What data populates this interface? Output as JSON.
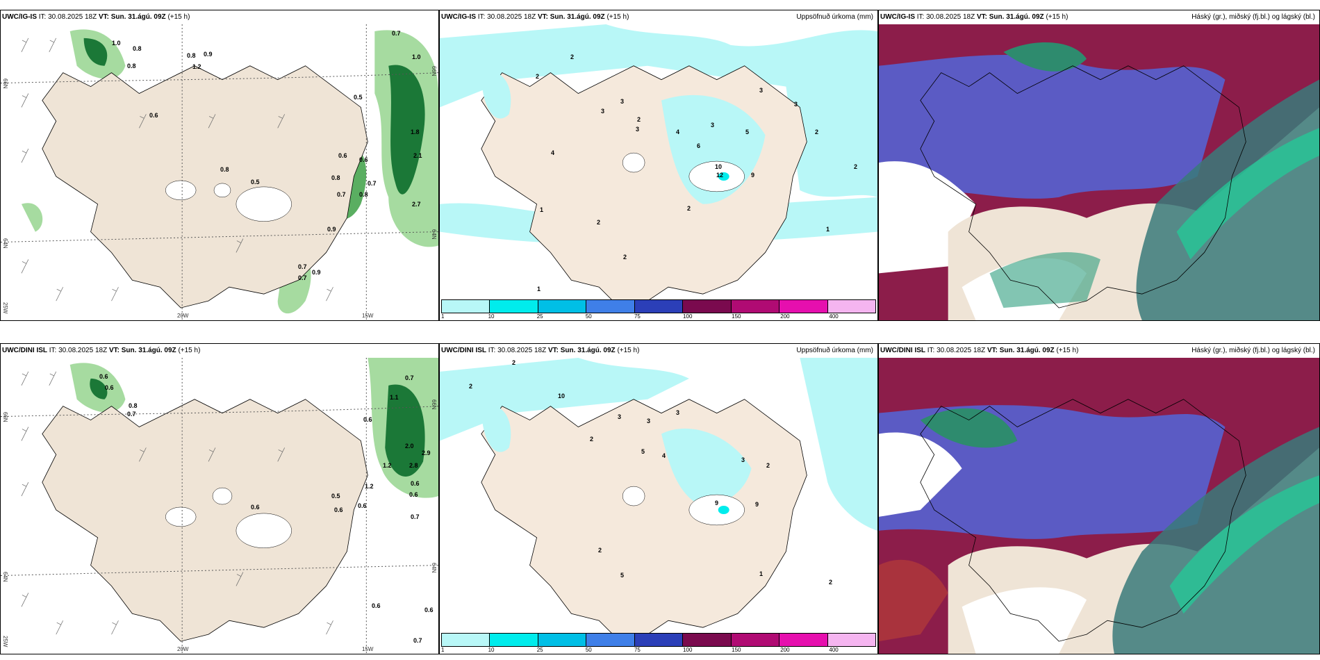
{
  "rows": [
    {
      "model": "UWC/IG-IS",
      "it": "IT: 30.08.2025 18Z",
      "vt_label": "VT: Sun. 31.ágú. 09Z",
      "lead": "(+15 h)"
    },
    {
      "model": "UWC/DINI ISL",
      "it": "IT: 30.08.2025 18Z",
      "vt_label": "VT: Sun. 31.ágú. 09Z",
      "lead": "(+15 h)"
    }
  ],
  "panel_titles": {
    "precip": "Uppsöfnuð úrkoma (mm)",
    "clouds": "Háský (gr.), miðský (fj.bl.) og lágský (bl.)"
  },
  "axes": {
    "lat_66": "66N",
    "lat_64": "64N",
    "lon_25": "25W",
    "lon_20": "20W",
    "lon_15": "15W",
    "lon_right_66": "66N",
    "lon_right_64": "64N"
  },
  "colorbar": {
    "ticks": [
      "1",
      "10",
      "25",
      "50",
      "75",
      "100",
      "150",
      "200",
      "400"
    ],
    "colors": [
      "#b8f7f7",
      "#00ecec",
      "#00bfe6",
      "#3f7fe8",
      "#2b3fb8",
      "#7a0a4e",
      "#b00b73",
      "#e60fae",
      "#f5b5f0"
    ]
  },
  "wind_values_top": [
    "1.0",
    "0.8",
    "0.8",
    "0.8",
    "0.9",
    "1.2",
    "0.6",
    "0.5",
    "0.7",
    "1.0",
    "0.8",
    "0.5",
    "0.6",
    "0.8",
    "0.7",
    "0.6",
    "0.8",
    "0.7",
    "0.9",
    "2.1",
    "1.8",
    "2.7",
    "0.7",
    "0.7",
    "0.9"
  ],
  "wind_values_bottom": [
    "0.6",
    "0.6",
    "0.8",
    "0.7",
    "0.7",
    "1.1",
    "0.6",
    "2.0",
    "2.9",
    "2.8",
    "1.2",
    "0.6",
    "0.6",
    "0.5",
    "0.6",
    "0.6",
    "1.2",
    "0.6",
    "0.7",
    "0.6",
    "0.6",
    "0.7"
  ],
  "precip_values_top": [
    "2",
    "2",
    "3",
    "3",
    "3",
    "2",
    "4",
    "3",
    "6",
    "5",
    "3",
    "3",
    "2",
    "2",
    "1",
    "2",
    "12",
    "10",
    "9",
    "4",
    "1",
    "1",
    "2",
    "2"
  ],
  "precip_values_bottom": [
    "2",
    "2",
    "10",
    "3",
    "3",
    "3",
    "2",
    "5",
    "4",
    "3",
    "2",
    "9",
    "9",
    "2",
    "5",
    "1",
    "2"
  ]
}
